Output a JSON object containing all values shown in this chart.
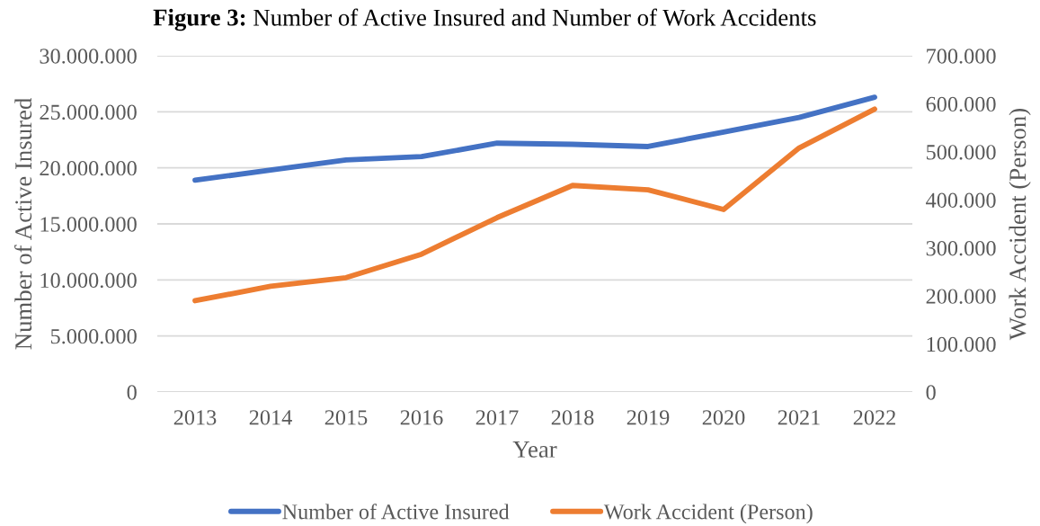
{
  "chart_data": {
    "type": "line",
    "title": "Figure 3: Number of Active Insured and Number of Work Accidents",
    "xlabel": "Year",
    "ylabel": "Number of Active Insured",
    "y2label": "Work Accident (Person)",
    "categories": [
      "2013",
      "2014",
      "2015",
      "2016",
      "2017",
      "2018",
      "2019",
      "2020",
      "2021",
      "2022"
    ],
    "series": [
      {
        "name": "Number of Active Insured",
        "color": "#4472c4",
        "values": [
          18900000,
          19800000,
          20700000,
          21000000,
          22200000,
          22100000,
          21900000,
          23200000,
          24500000,
          26300000
        ]
      },
      {
        "name": "Work Accident (Person)",
        "color": "#ed7d31",
        "axis": "y2",
        "values": [
          190000,
          220000,
          238000,
          287000,
          363000,
          430000,
          421000,
          380000,
          508000,
          589000
        ]
      }
    ],
    "ylim": [
      0,
      30000000
    ],
    "yticks": [
      0,
      {
        "value": 5000000,
        "label": "5.000.000"
      },
      {
        "value": 10000000,
        "label": "10.000.000"
      },
      {
        "value": 15000000,
        "label": "15.000.000"
      },
      {
        "value": 20000000,
        "label": "20.000.000"
      },
      {
        "value": 25000000,
        "label": "25.000.000"
      },
      {
        "value": 30000000,
        "label": "30.000.000"
      }
    ],
    "y2lim": [
      0,
      700000
    ],
    "y2ticks": [
      0,
      {
        "value": 100000,
        "label": "100.000"
      },
      {
        "value": 200000,
        "label": "200.000"
      },
      {
        "value": 300000,
        "label": "300.000"
      },
      {
        "value": 400000,
        "label": "400.000"
      },
      {
        "value": 500000,
        "label": "500.000"
      },
      {
        "value": 600000,
        "label": "600.000"
      },
      {
        "value": 700000,
        "label": "700.000"
      }
    ],
    "grid": "y",
    "legend": "bottom",
    "line_style": "solid"
  }
}
